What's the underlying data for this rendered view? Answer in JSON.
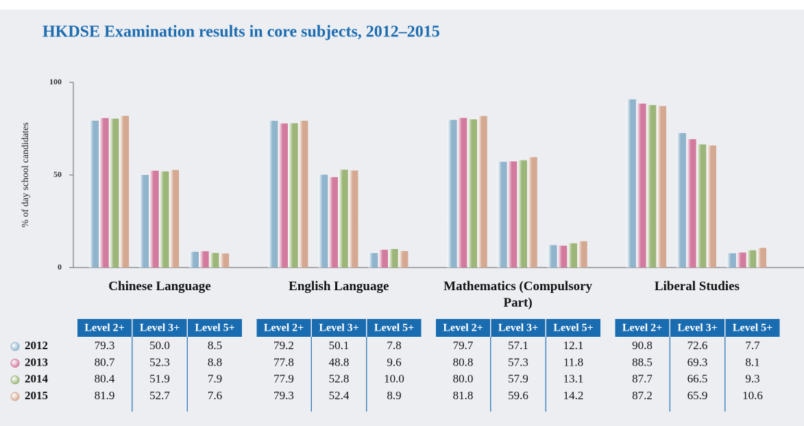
{
  "chart_data": {
    "type": "bar",
    "title": "HKDSE Examination results in core subjects, 2012–2015",
    "y_label": "% of day school candidates",
    "ylim": [
      0,
      100
    ],
    "yticks": [
      0,
      50,
      100
    ],
    "subjects": [
      "Chinese Language",
      "English Language",
      "Mathematics (Compulsory Part)",
      "Liberal Studies"
    ],
    "levels": [
      "Level 2+",
      "Level 3+",
      "Level 5+"
    ],
    "series": [
      {
        "name": "2012",
        "color": "#8fb4cc",
        "values": [
          79.3,
          50.0,
          8.5,
          79.2,
          50.1,
          7.8,
          79.7,
          57.1,
          12.1,
          90.8,
          72.6,
          7.7
        ],
        "value_labels": [
          "79.3",
          "50.0",
          "8.5",
          "79.2",
          "50.1",
          "7.8",
          "79.7",
          "57.1",
          "12.1",
          "90.8",
          "72.6",
          "7.7"
        ]
      },
      {
        "name": "2013",
        "color": "#d37b9e",
        "values": [
          80.7,
          52.3,
          8.8,
          77.8,
          48.8,
          9.6,
          80.8,
          57.3,
          11.8,
          88.5,
          69.3,
          8.1
        ],
        "value_labels": [
          "80.7",
          "52.3",
          "8.8",
          "77.8",
          "48.8",
          "9.6",
          "80.8",
          "57.3",
          "11.8",
          "88.5",
          "69.3",
          "8.1"
        ]
      },
      {
        "name": "2014",
        "color": "#9cb679",
        "values": [
          80.4,
          51.9,
          7.9,
          77.9,
          52.8,
          10.0,
          80.0,
          57.9,
          13.1,
          87.7,
          66.5,
          9.3
        ],
        "value_labels": [
          "80.4",
          "51.9",
          "7.9",
          "77.9",
          "52.8",
          "10.0",
          "80.0",
          "57.9",
          "13.1",
          "87.7",
          "66.5",
          "9.3"
        ]
      },
      {
        "name": "2015",
        "color": "#d4a891",
        "values": [
          81.9,
          52.7,
          7.6,
          79.3,
          52.4,
          8.9,
          81.8,
          59.6,
          14.2,
          87.2,
          65.9,
          10.6
        ],
        "value_labels": [
          "81.9",
          "52.7",
          "7.6",
          "79.3",
          "52.4",
          "8.9",
          "81.8",
          "59.6",
          "14.2",
          "87.2",
          "65.9",
          "10.6"
        ]
      }
    ]
  }
}
